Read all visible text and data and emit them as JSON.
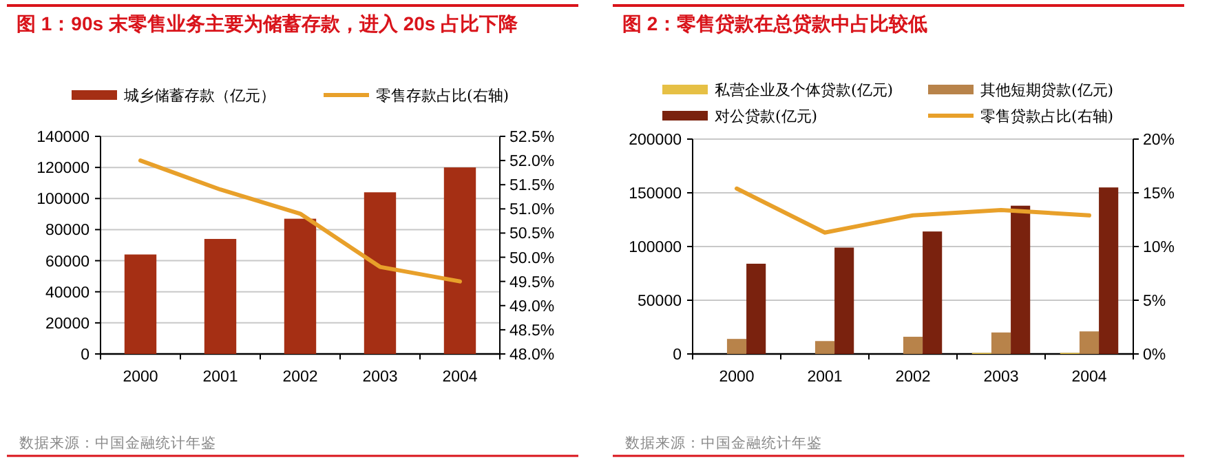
{
  "chart_data": [
    {
      "type": "bar",
      "title": "图 1：90s 末零售业务主要为储蓄存款，进入 20s 占比下降",
      "categories": [
        "2000",
        "2001",
        "2002",
        "2003",
        "2004"
      ],
      "series": [
        {
          "name": "城乡储蓄存款（亿元）",
          "color": "#a52f14",
          "values": [
            64000,
            74000,
            87000,
            104000,
            120000
          ]
        },
        {
          "type": "line",
          "name": "零售存款占比(右轴)",
          "color": "#e8a02a",
          "axis": "y2",
          "values": [
            52.0,
            51.4,
            50.9,
            49.8,
            49.5
          ]
        }
      ],
      "ylim": [
        0,
        140000
      ],
      "yticks": [
        0,
        20000,
        40000,
        60000,
        80000,
        100000,
        120000,
        140000
      ],
      "y2lim": [
        48,
        52.5
      ],
      "y2ticks": [
        {
          "value": 48,
          "label": "48.0%"
        },
        {
          "value": 48.5,
          "label": "48.5%"
        },
        {
          "value": 49,
          "label": "49.0%"
        },
        {
          "value": 49.5,
          "label": "49.5%"
        },
        {
          "value": 50,
          "label": "50.0%"
        },
        {
          "value": 50.5,
          "label": "50.5%"
        },
        {
          "value": 51,
          "label": "51.0%"
        },
        {
          "value": 51.5,
          "label": "51.5%"
        },
        {
          "value": 52,
          "label": "52.0%"
        },
        {
          "value": 52.5,
          "label": "52.5%"
        }
      ],
      "grid": "y",
      "legend": "top",
      "annotations": [
        "数据来源：中国金融统计年鉴"
      ]
    },
    {
      "type": "bar",
      "title": "图 2：零售贷款在总贷款中占比较低",
      "categories": [
        "2000",
        "2001",
        "2002",
        "2003",
        "2004"
      ],
      "series": [
        {
          "name": "私营企业及个体贷款(亿元)",
          "color": "#e6c045",
          "values": [
            0,
            0,
            0,
            1000,
            1000
          ]
        },
        {
          "name": "其他短期贷款(亿元)",
          "color": "#b8834a",
          "values": [
            14000,
            12000,
            16000,
            20000,
            21000
          ]
        },
        {
          "name": "对公贷款(亿元)",
          "color": "#7a220e",
          "values": [
            84000,
            99000,
            114000,
            138000,
            155000
          ]
        },
        {
          "type": "line",
          "name": "零售贷款占比(右轴)",
          "color": "#e8a02a",
          "axis": "y2",
          "values": [
            15.4,
            11.3,
            12.9,
            13.4,
            12.9
          ]
        }
      ],
      "ylim": [
        0,
        200000
      ],
      "yticks": [
        0,
        50000,
        100000,
        150000,
        200000
      ],
      "y2lim": [
        0,
        20
      ],
      "y2ticks": [
        {
          "value": 0,
          "label": "0%"
        },
        {
          "value": 5,
          "label": "5%"
        },
        {
          "value": 10,
          "label": "10%"
        },
        {
          "value": 15,
          "label": "15%"
        },
        {
          "value": 20,
          "label": "20%"
        }
      ],
      "grid": "y",
      "legend": "top",
      "annotations": [
        "数据来源：中国金融统计年鉴"
      ]
    }
  ]
}
